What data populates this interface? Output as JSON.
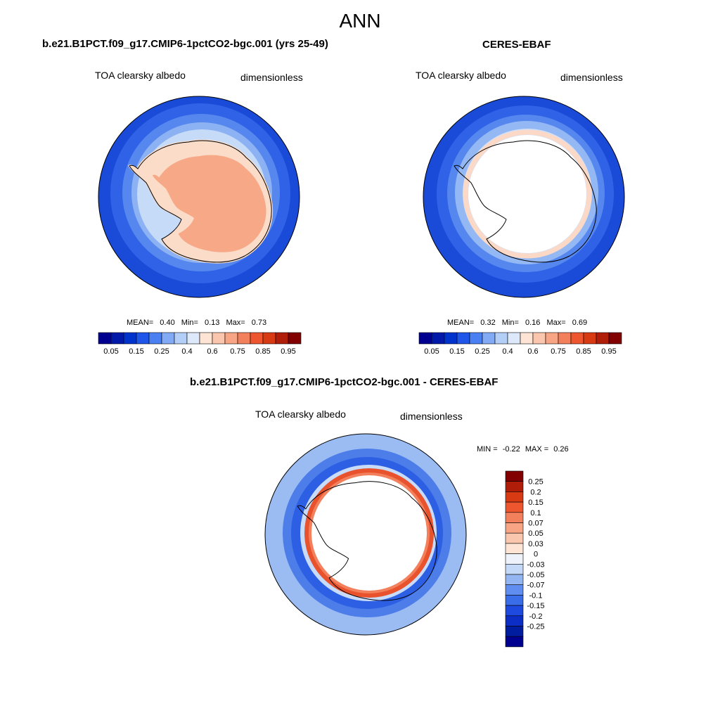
{
  "page": {
    "title": "ANN"
  },
  "panels": [
    {
      "title": "b.e21.B1PCT.f09_g17.CMIP6-1pctCO2-bgc.001 (yrs 25-49)",
      "left_label": "TOA clearsky albedo",
      "right_label": "dimensionless",
      "stats": {
        "mean_label": "MEAN=",
        "mean": "0.40",
        "min_label": "Min=",
        "min": "0.13",
        "max_label": "Max=",
        "max": "0.73"
      }
    },
    {
      "title": "CERES-EBAF",
      "left_label": "TOA clearsky albedo",
      "right_label": "dimensionless",
      "stats": {
        "mean_label": "MEAN=",
        "mean": "0.32",
        "min_label": "Min=",
        "min": "0.16",
        "max_label": "Max=",
        "max": "0.69"
      }
    }
  ],
  "diff_panel": {
    "title": "b.e21.B1PCT.f09_g17.CMIP6-1pctCO2-bgc.001 - CERES-EBAF",
    "left_label": "TOA clearsky albedo",
    "right_label": "dimensionless",
    "minmax": {
      "min_label": "MIN =",
      "min": "-0.22",
      "max_label": "MAX =",
      "max": "0.26"
    }
  },
  "colorbar_main": {
    "colors": [
      "#000090",
      "#0019a8",
      "#0033cc",
      "#1f55e8",
      "#4a80f2",
      "#82aaf5",
      "#b4cff7",
      "#dde9fb",
      "#fde4d4",
      "#fac6ad",
      "#f7a584",
      "#f3805c",
      "#ee5630",
      "#d83a14",
      "#b01e0a",
      "#820000"
    ],
    "ticks": [
      "0.05",
      "0.15",
      "0.25",
      "0.4",
      "0.6",
      "0.75",
      "0.85",
      "0.95"
    ]
  },
  "colorbar_diff": {
    "colors_top_to_bottom": [
      "#820000",
      "#b01e0a",
      "#d83a14",
      "#ee5630",
      "#f3805c",
      "#f7a584",
      "#fac6ad",
      "#fde4d4",
      "#eef3fb",
      "#c4d8f7",
      "#93b6f2",
      "#5f8ef0",
      "#3a6de8",
      "#1f4ae0",
      "#0c2ec4",
      "#001c9f",
      "#000090"
    ],
    "labels": [
      "0.25",
      "0.2",
      "0.15",
      "0.1",
      "0.07",
      "0.05",
      "0.03",
      "0",
      "-0.03",
      "-0.05",
      "-0.07",
      "-0.1",
      "-0.15",
      "-0.2",
      "-0.25"
    ]
  }
}
